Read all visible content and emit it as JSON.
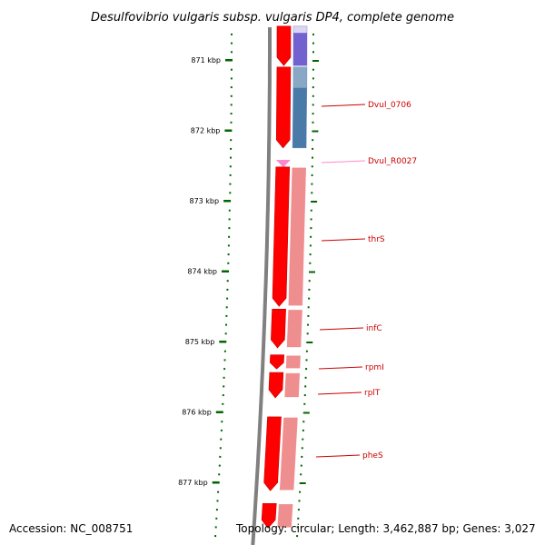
{
  "title": "Desulfovibrio vulgaris subsp. vulgaris DP4, complete genome",
  "footer": {
    "accession": "Accession: NC_008751",
    "stats": "Topology: circular; Length: 3,462,887 bp; Genes: 3,027"
  },
  "axis": {
    "unit": "kbp",
    "ticks": [
      {
        "kbp": 871,
        "label": "871 kbp"
      },
      {
        "kbp": 872,
        "label": "872 kbp"
      },
      {
        "kbp": 873,
        "label": "873 kbp"
      },
      {
        "kbp": 874,
        "label": "874 kbp"
      },
      {
        "kbp": 875,
        "label": "875 kbp"
      },
      {
        "kbp": 876,
        "label": "876 kbp"
      },
      {
        "kbp": 877,
        "label": "877 kbp"
      }
    ]
  },
  "colors": {
    "cds": "#ff0000",
    "cds_light": "#ee8888",
    "trna": "#ff88cc",
    "track_blue": "#4a7aa8",
    "track_purple": "#6a5acd",
    "backbone": "#808080",
    "tick": "#006600",
    "label": "#cc0000"
  },
  "genes": [
    {
      "id": "prev",
      "label": "",
      "start_kbp": 870.52,
      "end_kbp": 871.08,
      "type": "CDS"
    },
    {
      "id": "Dvul_0706",
      "label": "Dvul_0706",
      "start_kbp": 871.1,
      "end_kbp": 872.25,
      "type": "CDS"
    },
    {
      "id": "Dvul_R0027",
      "label": "Dvul_R0027",
      "start_kbp": 872.42,
      "end_kbp": 872.5,
      "type": "tRNA"
    },
    {
      "id": "thrS",
      "label": "thrS",
      "start_kbp": 872.52,
      "end_kbp": 874.5,
      "type": "CDS"
    },
    {
      "id": "infC",
      "label": "infC",
      "start_kbp": 874.54,
      "end_kbp": 875.09,
      "type": "CDS"
    },
    {
      "id": "rpmI",
      "label": "rpmI",
      "start_kbp": 875.19,
      "end_kbp": 875.39,
      "type": "CDS"
    },
    {
      "id": "rplT",
      "label": "rplT",
      "start_kbp": 875.44,
      "end_kbp": 875.8,
      "type": "CDS"
    },
    {
      "id": "pheS",
      "label": "pheS",
      "start_kbp": 876.07,
      "end_kbp": 877.12,
      "type": "CDS"
    },
    {
      "id": "next",
      "label": "",
      "start_kbp": 877.3,
      "end_kbp": 877.65,
      "type": "CDS"
    }
  ]
}
